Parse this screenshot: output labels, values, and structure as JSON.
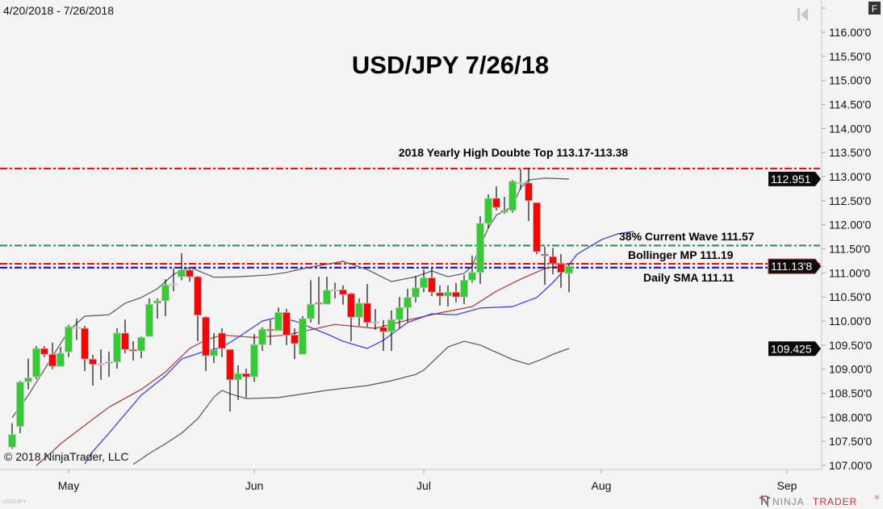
{
  "header": {
    "date_range": "4/20/2018 - 7/26/2018",
    "f_button": "F"
  },
  "footer": {
    "copyright": "© 2018 NinjaTrader, LLC",
    "instrument": "USD/JPY",
    "logo_ninja": "NINJA",
    "logo_trader": "TRADER",
    "logo_mark": "®"
  },
  "colors": {
    "background": "#f3f4f3",
    "up": "#33cc33",
    "down": "#ff0000",
    "body_outline": "#c4c4c4",
    "bollinger": "#555555",
    "bollinger_mid": "#b03030",
    "sma": "#3333ee",
    "resistance": "#ff0000",
    "fib": "#2e8b57",
    "support_blue": "#0000cc"
  },
  "chart_data": {
    "type": "candlestick",
    "title": "USD/JPY 7/26/18",
    "year": 2018,
    "ylim": [
      107.0,
      116.0
    ],
    "y_ticks": [
      "116.00'0",
      "115.50'0",
      "115.00'0",
      "114.50'0",
      "114.00'0",
      "113.50'0",
      "113.00'0",
      "112.50'0",
      "112.00'0",
      "111.50'0",
      "111.00'0",
      "110.50'0",
      "110.00'0",
      "109.50'0",
      "109.00'0",
      "108.50'0",
      "108.00'0",
      "107.50'0",
      "107.00'0"
    ],
    "x_ticks": [
      {
        "label": "May",
        "date": "5/1"
      },
      {
        "label": "Jun",
        "date": "6/1"
      },
      {
        "label": "Jul",
        "date": "7/2"
      },
      {
        "label": "Aug",
        "date": "8/1"
      },
      {
        "label": "Sep",
        "date": "9/3"
      }
    ],
    "grid": false,
    "candles_columns": [
      "date",
      "open",
      "high",
      "low",
      "close"
    ],
    "candles": [
      [
        "4/20",
        107.38,
        107.88,
        107.35,
        107.64
      ],
      [
        "4/23",
        107.81,
        108.76,
        107.67,
        108.73
      ],
      [
        "4/24",
        108.74,
        109.22,
        108.58,
        108.82
      ],
      [
        "4/25",
        108.84,
        109.48,
        108.79,
        109.43
      ],
      [
        "4/26",
        109.43,
        109.48,
        109.25,
        109.31
      ],
      [
        "4/27",
        109.31,
        109.55,
        109.0,
        109.06
      ],
      [
        "4/30",
        109.06,
        109.46,
        109.05,
        109.33
      ],
      [
        "5/1",
        109.36,
        109.92,
        109.25,
        109.88
      ],
      [
        "5/2",
        109.87,
        110.05,
        109.61,
        109.87
      ],
      [
        "5/3",
        109.85,
        109.9,
        108.96,
        109.21
      ],
      [
        "5/4",
        109.21,
        109.3,
        108.66,
        109.1
      ],
      [
        "5/7",
        109.11,
        109.41,
        108.78,
        109.11
      ],
      [
        "5/8",
        109.13,
        109.36,
        108.84,
        109.15
      ],
      [
        "5/9",
        109.15,
        109.85,
        109.01,
        109.75
      ],
      [
        "5/10",
        109.75,
        110.03,
        109.33,
        109.41
      ],
      [
        "5/11",
        109.41,
        109.58,
        109.18,
        109.38
      ],
      [
        "5/14",
        109.38,
        109.68,
        109.23,
        109.66
      ],
      [
        "5/15",
        109.68,
        110.47,
        109.68,
        110.35
      ],
      [
        "5/16",
        110.37,
        110.47,
        110.05,
        110.42
      ],
      [
        "5/17",
        110.42,
        110.87,
        110.1,
        110.75
      ],
      [
        "5/18",
        110.77,
        111.09,
        110.62,
        110.77
      ],
      [
        "5/21",
        110.92,
        111.41,
        110.85,
        111.06
      ],
      [
        "5/22",
        111.06,
        111.11,
        110.82,
        110.92
      ],
      [
        "5/23",
        110.92,
        110.94,
        109.58,
        110.12
      ],
      [
        "5/24",
        110.08,
        110.1,
        108.96,
        109.28
      ],
      [
        "5/25",
        109.28,
        109.75,
        109.13,
        109.4
      ],
      [
        "5/28",
        109.75,
        109.85,
        109.25,
        109.43
      ],
      [
        "5/29",
        109.41,
        109.41,
        108.12,
        108.78
      ],
      [
        "5/30",
        108.78,
        109.08,
        108.36,
        108.91
      ],
      [
        "5/31",
        108.91,
        109.01,
        108.41,
        108.84
      ],
      [
        "6/1",
        108.84,
        109.73,
        108.74,
        109.51
      ],
      [
        "6/4",
        109.51,
        109.87,
        109.38,
        109.83
      ],
      [
        "6/5",
        109.83,
        110.02,
        109.5,
        109.8
      ],
      [
        "6/6",
        109.8,
        110.28,
        109.8,
        110.18
      ],
      [
        "6/7",
        110.18,
        110.25,
        109.5,
        109.71
      ],
      [
        "6/8",
        109.71,
        109.85,
        109.21,
        109.53
      ],
      [
        "6/11",
        109.31,
        110.1,
        109.31,
        110.05
      ],
      [
        "6/12",
        110.05,
        110.85,
        109.97,
        110.35
      ],
      [
        "6/13",
        110.38,
        110.92,
        109.93,
        110.36
      ],
      [
        "6/14",
        110.35,
        110.92,
        110.35,
        110.64
      ],
      [
        "6/15",
        110.65,
        110.8,
        110.47,
        110.65
      ],
      [
        "6/18",
        110.65,
        110.74,
        110.34,
        110.55
      ],
      [
        "6/19",
        110.57,
        110.59,
        109.58,
        110.08
      ],
      [
        "6/20",
        110.08,
        110.47,
        109.9,
        110.37
      ],
      [
        "6/21",
        110.37,
        110.77,
        109.88,
        109.97
      ],
      [
        "6/22",
        109.98,
        110.25,
        109.82,
        109.98
      ],
      [
        "6/25",
        109.87,
        110.02,
        109.38,
        109.78
      ],
      [
        "6/26",
        109.78,
        110.22,
        109.38,
        110.03
      ],
      [
        "6/27",
        110.03,
        110.5,
        109.85,
        110.28
      ],
      [
        "6/28",
        110.28,
        110.67,
        109.98,
        110.49
      ],
      [
        "6/29",
        110.5,
        110.94,
        110.39,
        110.69
      ],
      [
        "7/2",
        110.69,
        111.07,
        110.6,
        110.9
      ],
      [
        "7/3",
        110.9,
        111.12,
        110.52,
        110.6
      ],
      [
        "7/4",
        110.59,
        110.74,
        110.32,
        110.52
      ],
      [
        "7/5",
        110.52,
        110.74,
        110.3,
        110.6
      ],
      [
        "7/6",
        110.6,
        110.79,
        110.39,
        110.5
      ],
      [
        "7/9",
        110.5,
        110.96,
        110.35,
        110.85
      ],
      [
        "7/10",
        110.85,
        111.36,
        110.8,
        111.01
      ],
      [
        "7/11",
        111.01,
        112.18,
        110.77,
        112.03
      ],
      [
        "7/12",
        112.03,
        112.63,
        111.93,
        112.55
      ],
      [
        "7/13",
        112.55,
        112.8,
        112.3,
        112.36
      ],
      [
        "7/16",
        112.26,
        112.58,
        112.23,
        112.3
      ],
      [
        "7/17",
        112.3,
        112.93,
        112.25,
        112.9
      ],
      [
        "7/18",
        112.88,
        113.15,
        112.73,
        112.88
      ],
      [
        "7/19",
        112.87,
        113.18,
        112.08,
        112.5
      ],
      [
        "7/20",
        112.46,
        112.46,
        111.39,
        111.44
      ],
      [
        "7/23",
        111.39,
        111.54,
        110.75,
        111.36
      ],
      [
        "7/24",
        111.34,
        111.52,
        110.97,
        111.19
      ],
      [
        "7/25",
        111.19,
        111.39,
        110.69,
        111.01
      ],
      [
        "7/26",
        110.99,
        111.17,
        110.6,
        111.14
      ]
    ],
    "indicators": [
      {
        "key": "bb_upper",
        "color": "#555555",
        "points": [
          [
            "4/20",
            107.99
          ],
          [
            "4/24",
            108.46
          ],
          [
            "4/27",
            109.26
          ],
          [
            "5/1",
            109.8
          ],
          [
            "5/3",
            110.1
          ],
          [
            "5/8",
            110.13
          ],
          [
            "5/10",
            110.37
          ],
          [
            "5/14",
            110.49
          ],
          [
            "5/16",
            110.67
          ],
          [
            "5/18",
            110.97
          ],
          [
            "5/22",
            111.12
          ],
          [
            "5/25",
            110.91
          ],
          [
            "5/30",
            110.92
          ],
          [
            "6/5",
            110.96
          ],
          [
            "6/7",
            111.01
          ],
          [
            "6/11",
            111.09
          ],
          [
            "6/18",
            111.24
          ],
          [
            "6/21",
            111.07
          ],
          [
            "6/26",
            110.82
          ],
          [
            "6/29",
            110.92
          ],
          [
            "7/3",
            111.04
          ],
          [
            "7/5",
            110.92
          ],
          [
            "7/9",
            110.99
          ],
          [
            "7/10",
            111.14
          ],
          [
            "7/11",
            111.56
          ],
          [
            "7/12",
            111.93
          ],
          [
            "7/13",
            112.2
          ],
          [
            "7/17",
            112.38
          ],
          [
            "7/18",
            112.77
          ],
          [
            "7/19",
            112.93
          ],
          [
            "7/23",
            112.97
          ],
          [
            "7/26",
            112.95
          ]
        ]
      },
      {
        "key": "bb_lower",
        "color": "#555555",
        "points": [
          [
            "5/11",
            107.02
          ],
          [
            "5/15",
            107.25
          ],
          [
            "5/17",
            107.45
          ],
          [
            "5/21",
            107.67
          ],
          [
            "5/23",
            107.97
          ],
          [
            "5/25",
            108.42
          ],
          [
            "5/28",
            108.56
          ],
          [
            "5/29",
            108.49
          ],
          [
            "5/31",
            108.39
          ],
          [
            "6/6",
            108.41
          ],
          [
            "6/8",
            108.46
          ],
          [
            "6/14",
            108.56
          ],
          [
            "6/21",
            108.66
          ],
          [
            "6/26",
            108.76
          ],
          [
            "6/29",
            108.89
          ],
          [
            "7/2",
            108.98
          ],
          [
            "7/5",
            109.46
          ],
          [
            "7/9",
            109.58
          ],
          [
            "7/11",
            109.5
          ],
          [
            "7/13",
            109.35
          ],
          [
            "7/17",
            109.2
          ],
          [
            "7/19",
            109.1
          ],
          [
            "7/23",
            109.23
          ],
          [
            "7/24",
            109.31
          ],
          [
            "7/26",
            109.43
          ]
        ]
      },
      {
        "key": "bb_mid",
        "color": "#b03030",
        "points": [
          [
            "4/25",
            107.0
          ],
          [
            "4/27",
            107.29
          ],
          [
            "4/30",
            107.45
          ],
          [
            "5/4",
            107.96
          ],
          [
            "5/8",
            108.21
          ],
          [
            "5/14",
            108.58
          ],
          [
            "5/17",
            108.94
          ],
          [
            "5/22",
            109.43
          ],
          [
            "5/24",
            109.61
          ],
          [
            "5/28",
            109.71
          ],
          [
            "6/1",
            109.66
          ],
          [
            "6/7",
            109.71
          ],
          [
            "6/15",
            109.93
          ],
          [
            "6/22",
            109.85
          ],
          [
            "6/28",
            110.02
          ],
          [
            "7/4",
            110.17
          ],
          [
            "7/10",
            110.3
          ],
          [
            "7/13",
            110.62
          ],
          [
            "7/18",
            110.87
          ],
          [
            "7/23",
            111.09
          ],
          [
            "7/26",
            111.19
          ]
        ]
      },
      {
        "key": "sma",
        "color": "#3333ee",
        "points": [
          [
            "5/3",
            107.03
          ],
          [
            "5/4",
            107.29
          ],
          [
            "5/8",
            107.67
          ],
          [
            "5/14",
            108.46
          ],
          [
            "5/17",
            108.86
          ],
          [
            "5/21",
            109.21
          ],
          [
            "5/24",
            109.38
          ],
          [
            "5/28",
            109.45
          ],
          [
            "5/30",
            109.66
          ],
          [
            "6/4",
            110.0
          ],
          [
            "6/6",
            110.08
          ],
          [
            "6/8",
            110.0
          ],
          [
            "6/14",
            109.73
          ],
          [
            "6/18",
            109.58
          ],
          [
            "6/21",
            109.43
          ],
          [
            "6/25",
            109.6
          ],
          [
            "6/28",
            109.97
          ],
          [
            "7/3",
            110.15
          ],
          [
            "7/6",
            110.13
          ],
          [
            "7/11",
            110.27
          ],
          [
            "7/17",
            110.3
          ],
          [
            "7/20",
            110.49
          ],
          [
            "7/24",
            110.8
          ],
          [
            "7/26",
            111.17
          ],
          [
            "7/27",
            111.39
          ],
          [
            "8/1",
            111.69
          ],
          [
            "8/3",
            111.81
          ],
          [
            "8/7",
            111.86
          ]
        ]
      }
    ],
    "levels": [
      {
        "key": "yearly-high",
        "value": 113.17,
        "color": "#ff0000",
        "label": "2018 Yearly High Doubte Top 113.17-113.38"
      },
      {
        "key": "fib-38",
        "value": 111.57,
        "color": "#2e8b57",
        "label": "38% Current Wave 111.57"
      },
      {
        "key": "bollinger-mp",
        "value": 111.19,
        "color": "#ff0000",
        "label": "Bollinger MP 111.19"
      },
      {
        "key": "daily-sma",
        "value": 111.11,
        "color": "#0000cc",
        "label": "Daily SMA 111.11"
      }
    ],
    "price_markers": [
      {
        "key": "bb-upper-value",
        "value": 112.951,
        "label": "112.951"
      },
      {
        "key": "last-price",
        "value": 111.138,
        "label": "111.13'8"
      },
      {
        "key": "bb-lower-value",
        "value": 109.425,
        "label": "109.425"
      }
    ]
  }
}
